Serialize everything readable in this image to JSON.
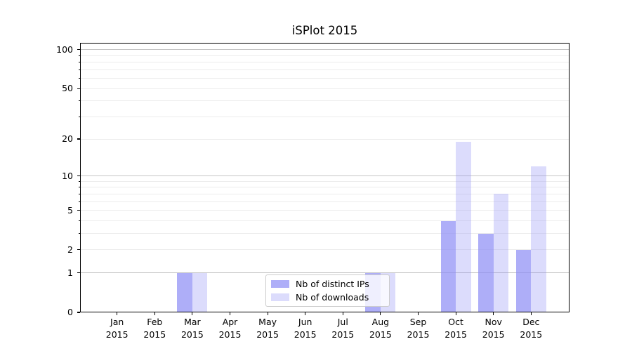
{
  "figure": {
    "title": "iSPlot 2015"
  },
  "chart_data": {
    "type": "bar",
    "title": "iSPlot 2015",
    "xlabel": "",
    "ylabel": "",
    "categories": [
      "Jan 2015",
      "Feb 2015",
      "Mar 2015",
      "Apr 2015",
      "May 2015",
      "Jun 2015",
      "Jul 2015",
      "Aug 2015",
      "Sep 2015",
      "Oct 2015",
      "Nov 2015",
      "Dec 2015"
    ],
    "series": [
      {
        "name": "Nb of distinct IPs",
        "values": [
          0,
          0,
          1,
          0,
          0,
          0,
          0,
          1,
          0,
          4,
          3,
          2
        ],
        "color": "rgba(140,140,245,0.7)"
      },
      {
        "name": "Nb of downloads",
        "values": [
          0,
          0,
          1,
          0,
          0,
          0,
          0,
          1,
          0,
          19,
          7,
          12
        ],
        "color": "rgba(140,140,245,0.3)"
      }
    ],
    "yscale": "log1p",
    "ylim": [
      0,
      113
    ],
    "y_tick_labels": [
      0,
      1,
      2,
      5,
      10,
      20,
      50,
      100
    ],
    "grid": {
      "decade_lines": [
        1,
        10,
        100
      ],
      "minor_lines": [
        2,
        3,
        4,
        5,
        6,
        7,
        8,
        9,
        20,
        30,
        40,
        50,
        60,
        70,
        80,
        90
      ],
      "decade_color": "#c4c4c4",
      "minor_color": "#ececec"
    },
    "legend": {
      "position": "lower center",
      "entries": [
        "Nb of distinct IPs",
        "Nb of downloads"
      ]
    }
  },
  "colors": {
    "background": "#ffffff",
    "spine": "#000000",
    "text": "#000000",
    "legend_border": "#cccccc",
    "bar_distinct_ips": "rgba(140,140,245,0.7)",
    "bar_downloads": "rgba(140,140,245,0.3)"
  }
}
